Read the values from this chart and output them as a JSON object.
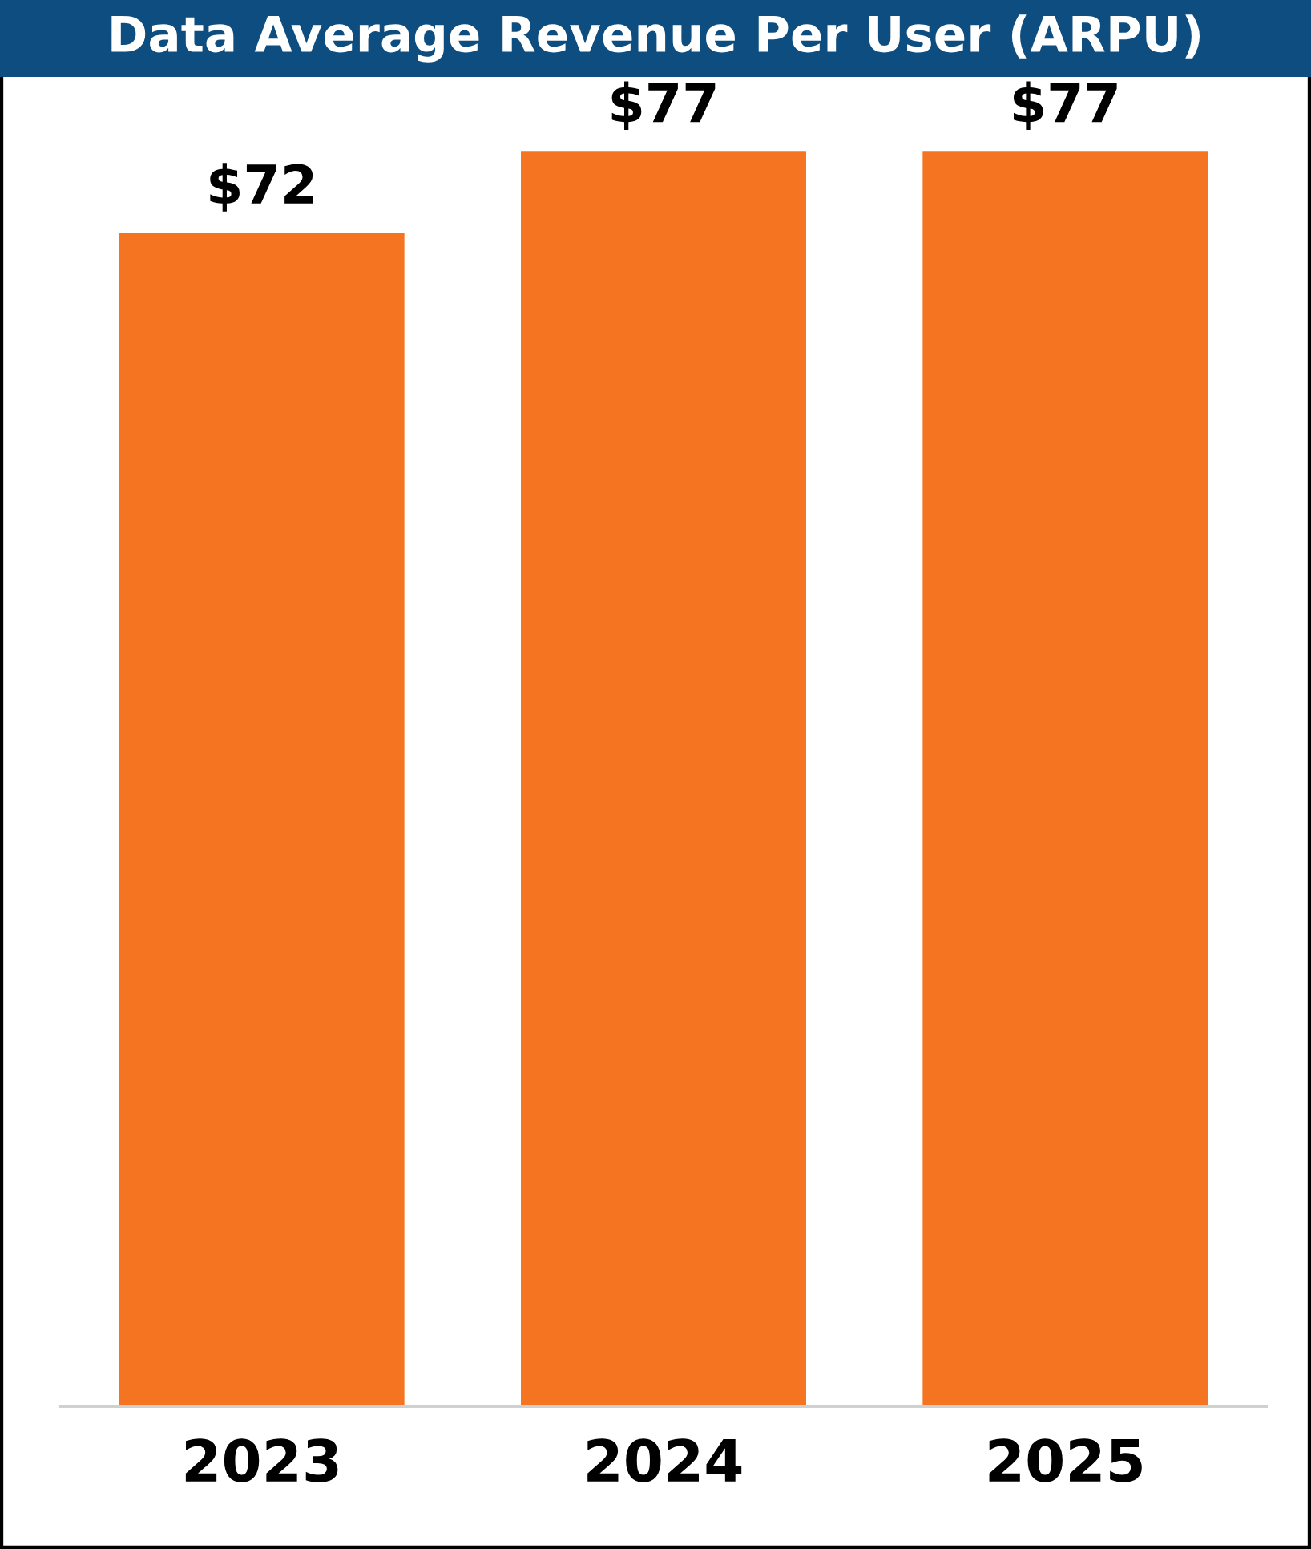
{
  "chart_data": {
    "type": "bar",
    "title": "Data Average Revenue Per User (ARPU)",
    "categories": [
      "2023",
      "2024",
      "2025"
    ],
    "values": [
      72,
      77,
      77
    ],
    "value_labels": [
      "$72",
      "$77",
      "$77"
    ],
    "color": "#f47421",
    "tick_labels": "x",
    "grid": false,
    "legend": false
  }
}
